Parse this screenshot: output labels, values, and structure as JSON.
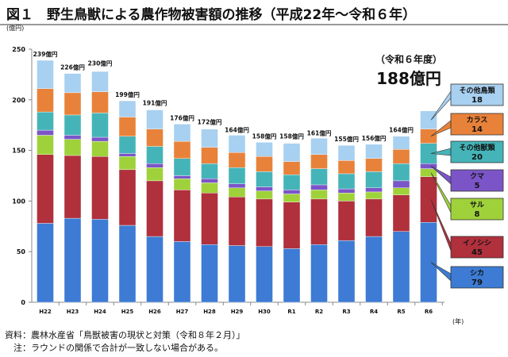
{
  "title": "図１　野生鳥獣による農作物被害額の推移（平成22年～令和６年）",
  "chart_data": {
    "type": "bar",
    "stacked": true,
    "title": "野生鳥獣による農作物被害額の推移（平成22年～令和６年）",
    "ylabel": "(億円)",
    "xlabel": "(年)",
    "ylim": [
      0,
      250
    ],
    "yticks": [
      0,
      50,
      100,
      150,
      200,
      250
    ],
    "categories": [
      "H22",
      "H23",
      "H24",
      "H25",
      "H26",
      "H27",
      "H28",
      "H29",
      "H30",
      "R1",
      "R2",
      "R3",
      "R4",
      "R5",
      "R6"
    ],
    "totals": [
      239,
      226,
      230,
      199,
      191,
      176,
      172,
      164,
      158,
      158,
      161,
      155,
      156,
      164,
      188
    ],
    "total_suffix": "億円",
    "series": [
      {
        "name": "シカ",
        "color": "#3d7bd4",
        "values": [
          78,
          83,
          82,
          76,
          65,
          60,
          57,
          56,
          55,
          53,
          57,
          61,
          65,
          70,
          79
        ]
      },
      {
        "name": "イノシシ",
        "color": "#b0303c",
        "values": [
          68,
          62,
          62,
          55,
          55,
          51,
          51,
          48,
          47,
          46,
          45,
          39,
          37,
          36,
          45
        ]
      },
      {
        "name": "サル",
        "color": "#9fd23a",
        "values": [
          19,
          16,
          15,
          13,
          13,
          11,
          10,
          9,
          8,
          8,
          9,
          8,
          7,
          7,
          8
        ]
      },
      {
        "name": "クマ",
        "color": "#7b55c8",
        "values": [
          5,
          4,
          4,
          3,
          4,
          3,
          4,
          4,
          4,
          4,
          5,
          4,
          4,
          7,
          5
        ]
      },
      {
        "name": "その他獣類",
        "color": "#45b4b8",
        "values": [
          18,
          20,
          24,
          17,
          17,
          17,
          15,
          16,
          15,
          15,
          16,
          15,
          16,
          17,
          20
        ]
      },
      {
        "name": "カラス",
        "color": "#e8823a",
        "values": [
          23,
          22,
          21,
          19,
          17,
          17,
          16,
          15,
          15,
          13,
          14,
          13,
          13,
          14,
          14
        ]
      },
      {
        "name": "その他鳥類",
        "color": "#a8d0f0",
        "values": [
          28,
          19,
          20,
          16,
          19,
          17,
          18,
          17,
          14,
          18,
          16,
          15,
          14,
          13,
          18
        ]
      }
    ],
    "annotation": {
      "line1": "（令和６年度）",
      "line2": "188億円"
    },
    "callouts": [
      {
        "name": "その他鳥類",
        "value": "18"
      },
      {
        "name": "カラス",
        "value": "14"
      },
      {
        "name": "その他獣類",
        "value": "20"
      },
      {
        "name": "クマ",
        "value": "5"
      },
      {
        "name": "サル",
        "value": "8"
      },
      {
        "name": "イノシシ",
        "value": "45"
      },
      {
        "name": "シカ",
        "value": "79"
      }
    ]
  },
  "notes": {
    "source": "資料：農林水産省「鳥獣被害の現状と対策（令和８年２月）」",
    "note": "　注：ラウンドの関係で合計が一致しない場合がある。"
  }
}
